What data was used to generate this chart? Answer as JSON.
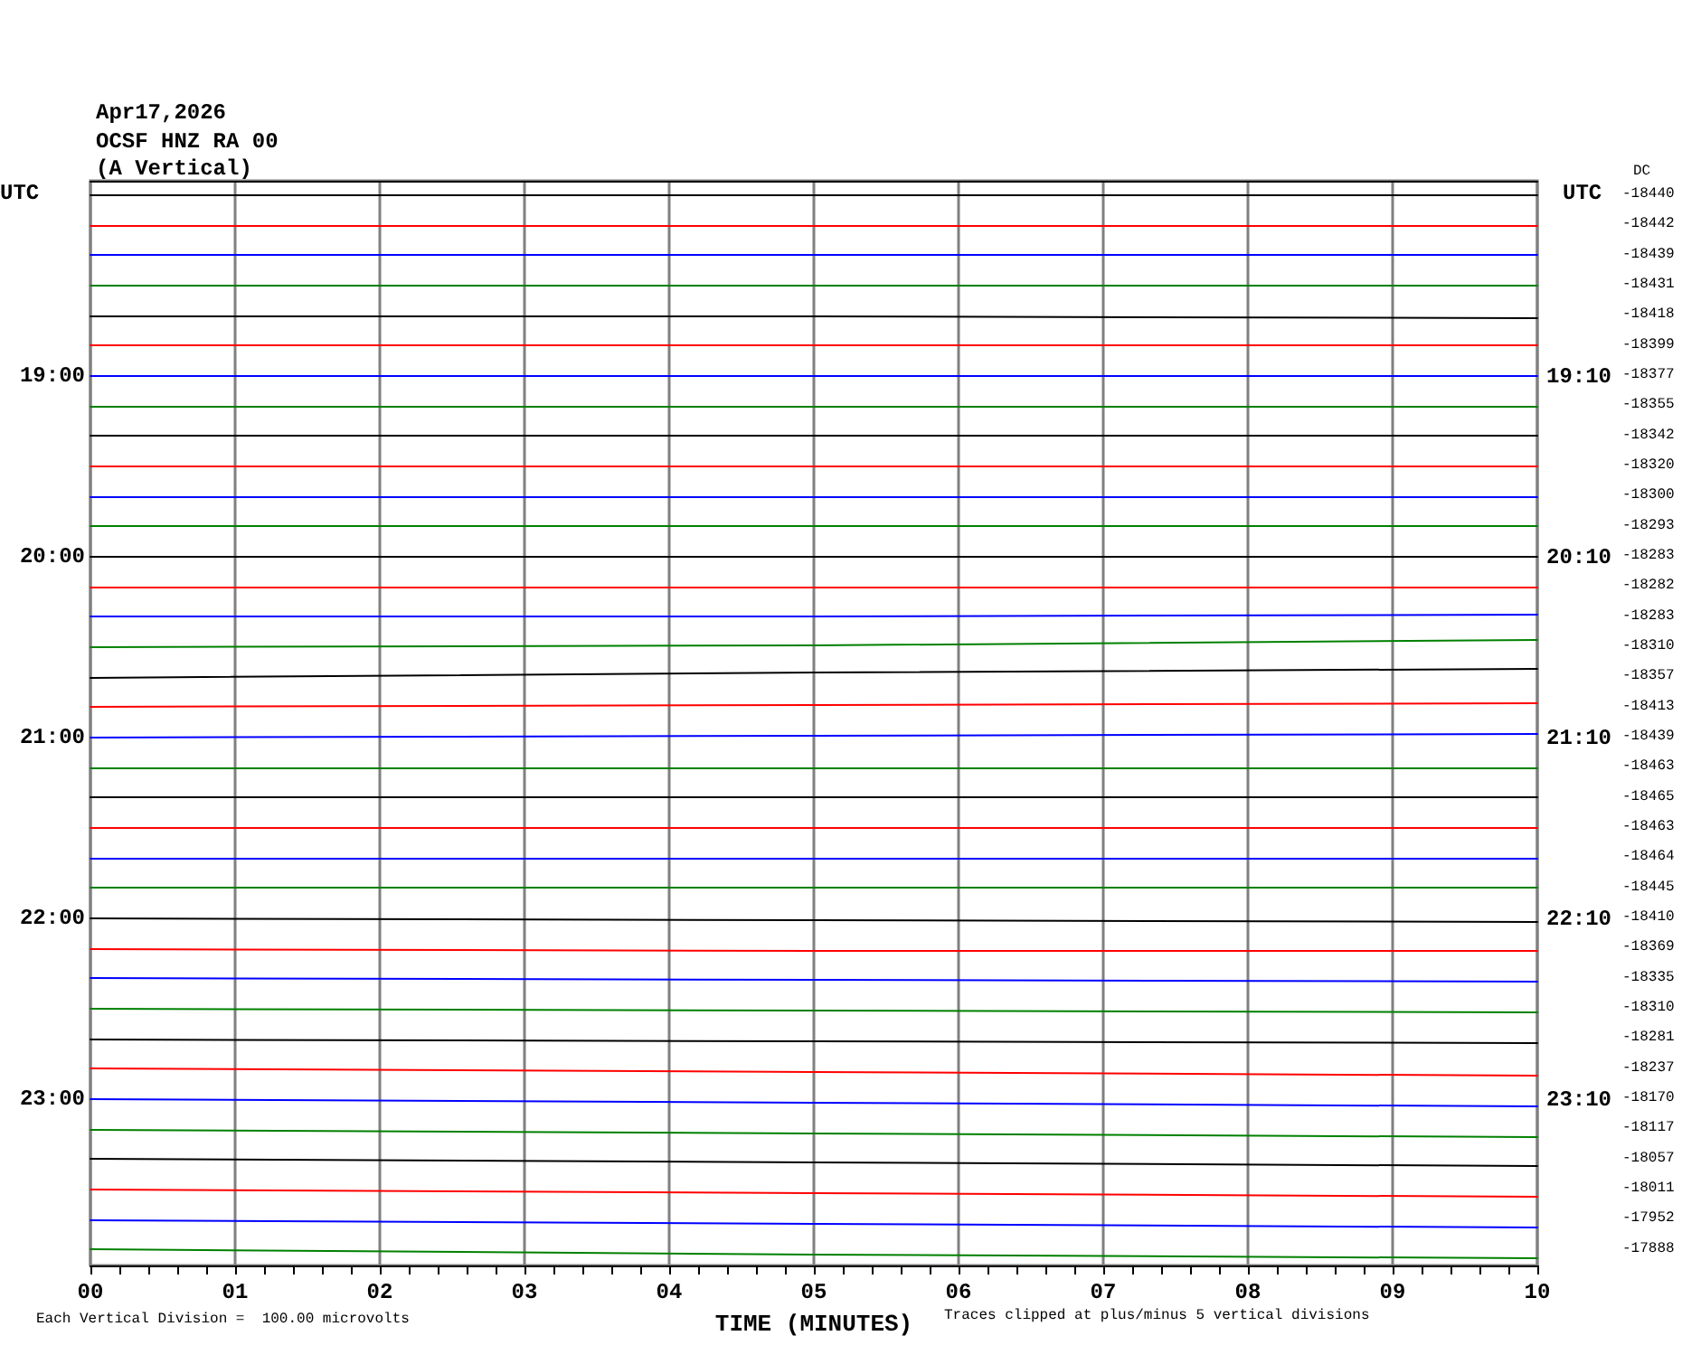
{
  "chart_data": {
    "type": "line",
    "title": "Apr17,2026",
    "subtitle": "OCSF HNZ RA 00\n(A Vertical)",
    "xlabel": "TIME (MINUTES)",
    "ylabel": "UTC",
    "y2label": "UTC",
    "annotations": [
      "Each Vertical Division =  100.00 microvolts",
      "Traces clipped at plus/minus 5 vertical divisions",
      "DC",
      "-18440",
      "-18442",
      "-18439",
      "-18431",
      "-18418",
      "-18399",
      "-18377",
      "-18355",
      "-18342",
      "-18320",
      "-18300",
      "-18293",
      "-18283",
      "-18282",
      "-18283",
      "-18310",
      "-18357",
      "-18413",
      "-18439",
      "-18463",
      "-18465",
      "-18463",
      "-18464",
      "-18445",
      "-18410",
      "-18369",
      "-18335",
      "-18310",
      "-18281",
      "-18237",
      "-18170",
      "-18117",
      "-18057",
      "-18011",
      "-17952",
      "-17888"
    ],
    "x": [
      0,
      5,
      10
    ],
    "series": [
      {
        "color": "#000000",
        "values": [
          18,
          18,
          18
        ]
      },
      {
        "color": "#ff0000",
        "values": [
          18.17,
          18.17,
          18.17
        ]
      },
      {
        "color": "#0000ff",
        "values": [
          18.33,
          18.33,
          18.33
        ]
      },
      {
        "color": "#008000",
        "values": [
          18.5,
          18.5,
          18.5
        ]
      },
      {
        "color": "#000000",
        "values": [
          18.67,
          18.67,
          18.68
        ]
      },
      {
        "color": "#ff0000",
        "values": [
          18.83,
          18.83,
          18.83
        ]
      },
      {
        "color": "#0000ff",
        "values": [
          19,
          19,
          19
        ]
      },
      {
        "color": "#008000",
        "values": [
          19.17,
          19.17,
          19.17
        ]
      },
      {
        "color": "#000000",
        "values": [
          19.33,
          19.33,
          19.33
        ]
      },
      {
        "color": "#ff0000",
        "values": [
          19.5,
          19.5,
          19.5
        ]
      },
      {
        "color": "#0000ff",
        "values": [
          19.67,
          19.67,
          19.67
        ]
      },
      {
        "color": "#008000",
        "values": [
          19.83,
          19.83,
          19.83
        ]
      },
      {
        "color": "#000000",
        "values": [
          20,
          20,
          20
        ]
      },
      {
        "color": "#ff0000",
        "values": [
          20.17,
          20.17,
          20.17
        ]
      },
      {
        "color": "#0000ff",
        "values": [
          20.33,
          20.33,
          20.32
        ]
      },
      {
        "color": "#008000",
        "values": [
          20.5,
          20.49,
          20.46
        ]
      },
      {
        "color": "#000000",
        "values": [
          20.67,
          20.64,
          20.62
        ]
      },
      {
        "color": "#ff0000",
        "values": [
          20.83,
          20.82,
          20.81
        ]
      },
      {
        "color": "#0000ff",
        "values": [
          21,
          20.99,
          20.98
        ]
      },
      {
        "color": "#008000",
        "values": [
          21.17,
          21.17,
          21.17
        ]
      },
      {
        "color": "#000000",
        "values": [
          21.33,
          21.33,
          21.33
        ]
      },
      {
        "color": "#ff0000",
        "values": [
          21.5,
          21.5,
          21.5
        ]
      },
      {
        "color": "#0000ff",
        "values": [
          21.67,
          21.67,
          21.67
        ]
      },
      {
        "color": "#008000",
        "values": [
          21.83,
          21.83,
          21.83
        ]
      },
      {
        "color": "#000000",
        "values": [
          22,
          22.01,
          22.02
        ]
      },
      {
        "color": "#ff0000",
        "values": [
          22.17,
          22.18,
          22.18
        ]
      },
      {
        "color": "#0000ff",
        "values": [
          22.33,
          22.34,
          22.35
        ]
      },
      {
        "color": "#008000",
        "values": [
          22.5,
          22.51,
          22.52
        ]
      },
      {
        "color": "#000000",
        "values": [
          22.67,
          22.68,
          22.69
        ]
      },
      {
        "color": "#ff0000",
        "values": [
          22.83,
          22.85,
          22.87
        ]
      },
      {
        "color": "#0000ff",
        "values": [
          23,
          23.02,
          23.04
        ]
      },
      {
        "color": "#008000",
        "values": [
          23.17,
          23.19,
          23.21
        ]
      },
      {
        "color": "#000000",
        "values": [
          23.33,
          23.35,
          23.37
        ]
      },
      {
        "color": "#ff0000",
        "values": [
          23.5,
          23.52,
          23.54
        ]
      },
      {
        "color": "#0000ff",
        "values": [
          23.67,
          23.69,
          23.71
        ]
      },
      {
        "color": "#008000",
        "values": [
          23.83,
          23.86,
          23.88
        ]
      }
    ],
    "xlim": [
      0,
      10
    ],
    "xticks": [
      {
        "value": 0,
        "label": "00"
      },
      {
        "value": 0.2,
        "label": null
      },
      {
        "value": 0.4,
        "label": null
      },
      {
        "value": 0.6,
        "label": null
      },
      {
        "value": 0.8,
        "label": null
      },
      {
        "value": 1,
        "label": "01"
      },
      {
        "value": 1.2,
        "label": null
      },
      {
        "value": 1.4,
        "label": null
      },
      {
        "value": 1.6,
        "label": null
      },
      {
        "value": 1.8,
        "label": null
      },
      {
        "value": 2,
        "label": "02"
      },
      {
        "value": 2.2,
        "label": null
      },
      {
        "value": 2.4,
        "label": null
      },
      {
        "value": 2.6,
        "label": null
      },
      {
        "value": 2.8,
        "label": null
      },
      {
        "value": 3,
        "label": "03"
      },
      {
        "value": 3.2,
        "label": null
      },
      {
        "value": 3.4,
        "label": null
      },
      {
        "value": 3.6,
        "label": null
      },
      {
        "value": 3.8,
        "label": null
      },
      {
        "value": 4,
        "label": "04"
      },
      {
        "value": 4.2,
        "label": null
      },
      {
        "value": 4.4,
        "label": null
      },
      {
        "value": 4.6,
        "label": null
      },
      {
        "value": 4.8,
        "label": null
      },
      {
        "value": 5,
        "label": "05"
      },
      {
        "value": 5.2,
        "label": null
      },
      {
        "value": 5.4,
        "label": null
      },
      {
        "value": 5.6,
        "label": null
      },
      {
        "value": 5.8,
        "label": null
      },
      {
        "value": 6,
        "label": "06"
      },
      {
        "value": 6.2,
        "label": null
      },
      {
        "value": 6.4,
        "label": null
      },
      {
        "value": 6.6,
        "label": null
      },
      {
        "value": 6.8,
        "label": null
      },
      {
        "value": 7,
        "label": "07"
      },
      {
        "value": 7.2,
        "label": null
      },
      {
        "value": 7.4,
        "label": null
      },
      {
        "value": 7.6,
        "label": null
      },
      {
        "value": 7.8,
        "label": null
      },
      {
        "value": 8,
        "label": "08"
      },
      {
        "value": 8.2,
        "label": null
      },
      {
        "value": 8.4,
        "label": null
      },
      {
        "value": 8.6,
        "label": null
      },
      {
        "value": 8.8,
        "label": null
      },
      {
        "value": 9,
        "label": "09"
      },
      {
        "value": 9.2,
        "label": null
      },
      {
        "value": 9.4,
        "label": null
      },
      {
        "value": 9.6,
        "label": null
      },
      {
        "value": 9.8,
        "label": null
      },
      {
        "value": 10,
        "label": "10"
      }
    ],
    "ylim": [
      23.92,
      17.92
    ],
    "yticks": [
      {
        "value": 19,
        "label": "19:00"
      },
      {
        "value": 20,
        "label": "20:00"
      },
      {
        "value": 21,
        "label": "21:00"
      },
      {
        "value": 22,
        "label": "22:00"
      },
      {
        "value": 23,
        "label": "23:00"
      }
    ],
    "y2lim": [
      24.08,
      18.08
    ],
    "y2ticks": [
      {
        "value": 19.167,
        "label": "19:10"
      },
      {
        "value": 20.167,
        "label": "20:10"
      },
      {
        "value": 21.167,
        "label": "21:10"
      },
      {
        "value": 22.167,
        "label": "22:10"
      },
      {
        "value": 23.167,
        "label": "23:10"
      }
    ],
    "grid": "x",
    "marker": "none",
    "line_style": "solid"
  }
}
